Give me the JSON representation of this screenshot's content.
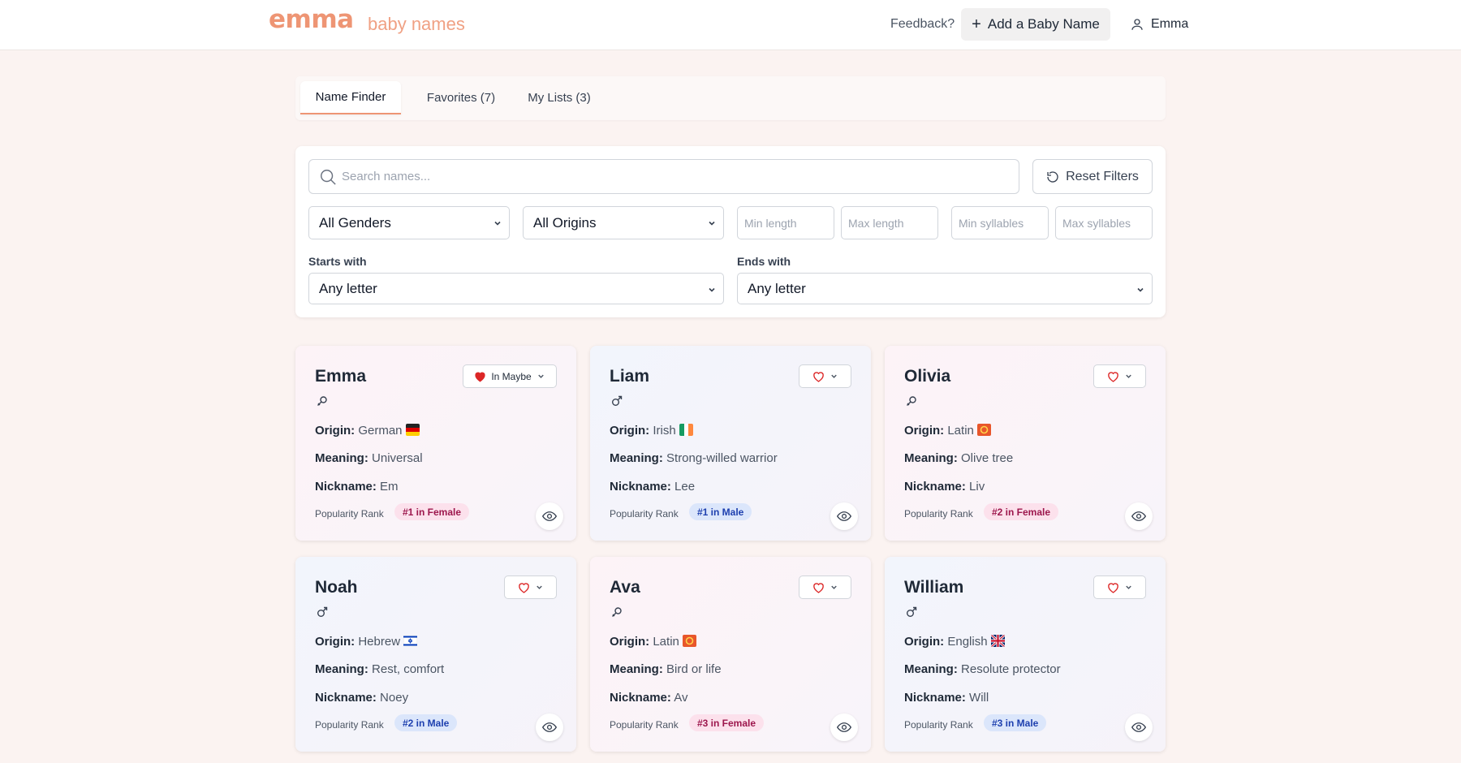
{
  "header": {
    "logo_main": "emma",
    "logo_sub": "baby names",
    "feedback_label": "Feedback?",
    "add_button_label": "Add a Baby Name",
    "user_name": "Emma"
  },
  "tabs": [
    {
      "label": "Name Finder",
      "active": true
    },
    {
      "label": "Favorites (7)",
      "active": false
    },
    {
      "label": "My Lists (3)",
      "active": false
    }
  ],
  "filters": {
    "search_placeholder": "Search names...",
    "reset_label": "Reset Filters",
    "gender_select": "All Genders",
    "origin_select": "All Origins",
    "min_length_placeholder": "Min length",
    "max_length_placeholder": "Max length",
    "min_syllables_placeholder": "Min syllables",
    "max_syllables_placeholder": "Max syllables",
    "starts_with_label": "Starts with",
    "starts_with_value": "Any letter",
    "ends_with_label": "Ends with",
    "ends_with_value": "Any letter"
  },
  "labels": {
    "origin": "Origin:",
    "meaning": "Meaning:",
    "nickname": "Nickname:",
    "popularity": "Popularity Rank"
  },
  "cards": [
    {
      "name": "Emma",
      "gender": "female",
      "origin": "German",
      "flag": "germany",
      "meaning": "Universal",
      "nickname": "Em",
      "rank": "#1 in Female",
      "list_status": "In Maybe",
      "favorited": true
    },
    {
      "name": "Liam",
      "gender": "male",
      "origin": "Irish",
      "flag": "ireland",
      "meaning": "Strong-willed warrior",
      "nickname": "Lee",
      "rank": "#1 in Male",
      "list_status": "",
      "favorited": false
    },
    {
      "name": "Olivia",
      "gender": "female",
      "origin": "Latin",
      "flag": "latin",
      "meaning": "Olive tree",
      "nickname": "Liv",
      "rank": "#2 in Female",
      "list_status": "",
      "favorited": false
    },
    {
      "name": "Noah",
      "gender": "male",
      "origin": "Hebrew",
      "flag": "israel",
      "meaning": "Rest, comfort",
      "nickname": "Noey",
      "rank": "#2 in Male",
      "list_status": "",
      "favorited": false
    },
    {
      "name": "Ava",
      "gender": "female",
      "origin": "Latin",
      "flag": "latin",
      "meaning": "Bird or life",
      "nickname": "Av",
      "rank": "#3 in Female",
      "list_status": "",
      "favorited": false
    },
    {
      "name": "William",
      "gender": "male",
      "origin": "English",
      "flag": "uk",
      "meaning": "Resolute protector",
      "nickname": "Will",
      "rank": "#3 in Male",
      "list_status": "",
      "favorited": false
    }
  ],
  "colors": {
    "accent": "#ee9574",
    "background": "#fbf3f1",
    "heart": "#dc2626",
    "female_badge_bg": "#fce1ec",
    "male_badge_bg": "#dbe6fb"
  }
}
